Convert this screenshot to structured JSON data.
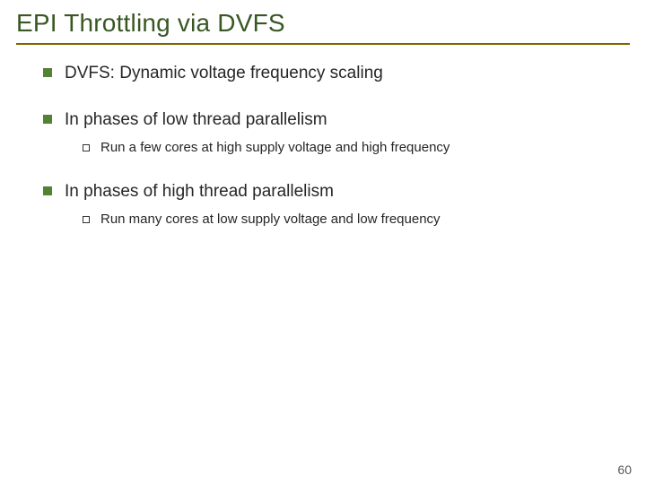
{
  "colors": {
    "title": "#385723",
    "rule": "#806000",
    "body_text": "#262626",
    "bullet_lvl1": "#548235",
    "pagenum": "#595959"
  },
  "title": "EPI Throttling via DVFS",
  "items": [
    {
      "text": "DVFS: Dynamic voltage frequency scaling",
      "sub": []
    },
    {
      "text": "In phases of low thread parallelism",
      "sub": [
        "Run a few cores at high supply voltage and high frequency"
      ]
    },
    {
      "text": "In phases of high thread parallelism",
      "sub": [
        "Run many cores at low supply voltage and low frequency"
      ]
    }
  ],
  "page_number": "60"
}
